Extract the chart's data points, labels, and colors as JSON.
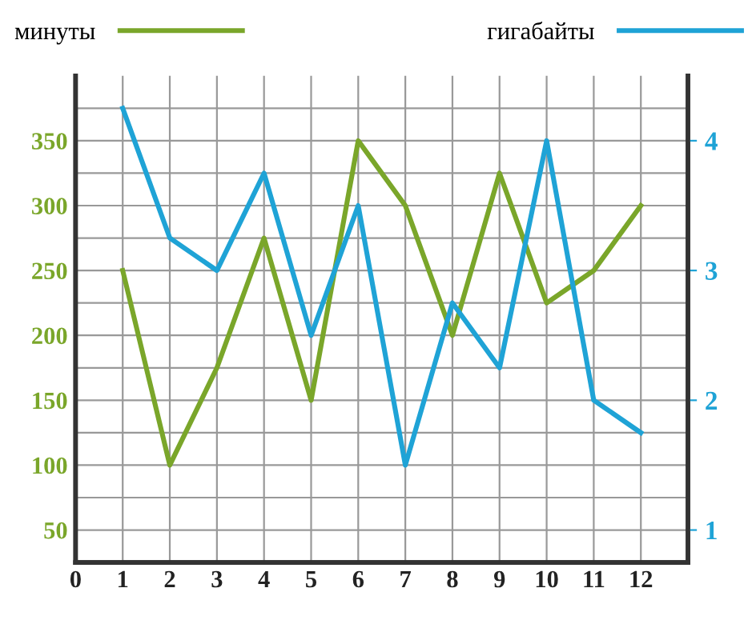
{
  "chart_data": {
    "type": "line",
    "x": [
      1,
      2,
      3,
      4,
      5,
      6,
      7,
      8,
      9,
      10,
      11,
      12
    ],
    "series": [
      {
        "name": "минуты",
        "color": "#7aa62a",
        "values": [
          250,
          100,
          175,
          275,
          150,
          350,
          300,
          200,
          325,
          225,
          250,
          300
        ]
      },
      {
        "name": "гигабайты",
        "color": "#1fa3d6",
        "axis": "y2",
        "values": [
          4.25,
          3.25,
          3,
          3.75,
          2.5,
          3.5,
          1.5,
          2.75,
          2.25,
          4,
          2,
          1.75
        ]
      }
    ],
    "xlim": [
      0,
      13
    ],
    "xticks": [
      0,
      1,
      2,
      3,
      4,
      5,
      6,
      7,
      8,
      9,
      10,
      11,
      12
    ],
    "ylim": [
      25,
      400
    ],
    "yticks": [
      50,
      {
        "value": 75,
        "label": null
      },
      100,
      {
        "value": 125,
        "label": null
      },
      150,
      {
        "value": 175,
        "label": null
      },
      200,
      {
        "value": 225,
        "label": null
      },
      250,
      {
        "value": 275,
        "label": null
      },
      300,
      {
        "value": 325,
        "label": null
      },
      350,
      {
        "value": 375,
        "label": null
      }
    ],
    "y2lim": [
      0.75,
      4.5
    ],
    "y2ticks": [
      1,
      2,
      3,
      4
    ],
    "grid": true,
    "legend": "top",
    "marker": "none",
    "line_style": "solid"
  }
}
